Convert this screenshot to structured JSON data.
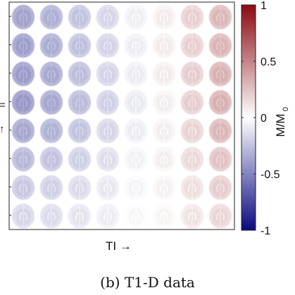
{
  "figure": {
    "x_axis_label": "TI →",
    "caption": "(b) T1-D data"
  },
  "colorbar": {
    "label_main": "M/M",
    "label_sub": "0",
    "ticks": [
      {
        "value": 1,
        "label": "1"
      },
      {
        "value": 0.5,
        "label": "0.5"
      },
      {
        "value": 0,
        "label": "0"
      },
      {
        "value": -0.5,
        "label": "-0.5"
      },
      {
        "value": -1,
        "label": "-1"
      }
    ],
    "colors": {
      "min": "#0a0a80",
      "mid": "#ffffff",
      "max": "#8b0a12"
    },
    "range": [
      -1,
      1
    ]
  },
  "grid": {
    "rows": 8,
    "columns": 8,
    "values": [
      [
        -0.32,
        -0.27,
        -0.2,
        -0.13,
        -0.04,
        0.05,
        0.15,
        0.24
      ],
      [
        -0.33,
        -0.28,
        -0.21,
        -0.14,
        -0.05,
        0.05,
        0.15,
        0.25
      ],
      [
        -0.34,
        -0.29,
        -0.22,
        -0.14,
        -0.05,
        0.05,
        0.16,
        0.26
      ],
      [
        -0.35,
        -0.3,
        -0.23,
        -0.15,
        -0.06,
        0.04,
        0.16,
        0.26
      ],
      [
        -0.3,
        -0.26,
        -0.2,
        -0.13,
        -0.05,
        0.04,
        0.14,
        0.24
      ],
      [
        -0.24,
        -0.2,
        -0.15,
        -0.1,
        -0.03,
        0.04,
        0.12,
        0.2
      ],
      [
        -0.18,
        -0.15,
        -0.11,
        -0.07,
        -0.02,
        0.03,
        0.1,
        0.16
      ],
      [
        -0.13,
        -0.11,
        -0.08,
        -0.05,
        -0.01,
        0.02,
        0.08,
        0.13
      ]
    ]
  }
}
